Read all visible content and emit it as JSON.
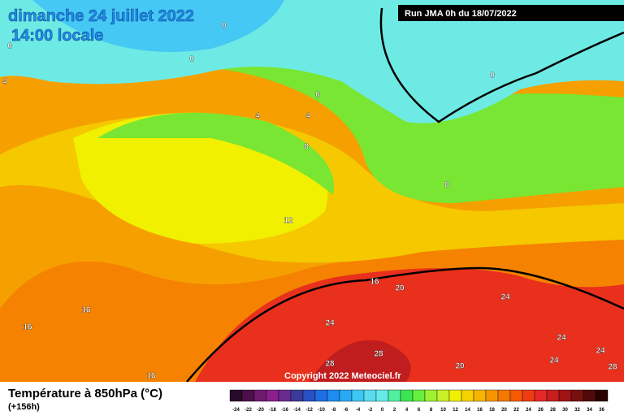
{
  "header": {
    "title": "dimanche 24 juillet 2022",
    "subtitle": "14:00 locale",
    "run": "Run JMA 0h du 18/07/2022"
  },
  "map": {
    "copyright": "Copyright 2022 Meteociel.fr",
    "contour_labels": [
      "0",
      "0",
      "0",
      "0",
      "0",
      "4",
      "4",
      "4",
      "8",
      "8",
      "12",
      "16",
      "16",
      "16",
      "16",
      "20",
      "20",
      "24",
      "24",
      "24",
      "24",
      "24",
      "28",
      "28",
      "28"
    ]
  },
  "legend": {
    "title": "Température à 850hPa (°C)",
    "lead": "(+156h)",
    "scale": [
      -24,
      -22,
      -20,
      -18,
      -16,
      -14,
      -12,
      -10,
      -8,
      -6,
      -4,
      -2,
      0,
      2,
      4,
      6,
      8,
      10,
      12,
      14,
      16,
      18,
      20,
      22,
      24,
      26,
      28,
      30,
      32,
      34,
      36
    ],
    "colors": [
      "#2a0a2a",
      "#4b0f4b",
      "#6e1a6e",
      "#8c1f8c",
      "#6a2a8f",
      "#3b3b9b",
      "#2850c0",
      "#1e6ee6",
      "#1e8cf0",
      "#28aaf5",
      "#3cc8f5",
      "#5adcf0",
      "#64ebe6",
      "#50f0a0",
      "#3ce650",
      "#64f03c",
      "#a0f032",
      "#c8f028",
      "#f0f000",
      "#f5d200",
      "#f5b400",
      "#f59600",
      "#f57800",
      "#f55a00",
      "#f03c14",
      "#e62828",
      "#c81e1e",
      "#a01414",
      "#781010",
      "#500a0a",
      "#2a0000"
    ]
  }
}
